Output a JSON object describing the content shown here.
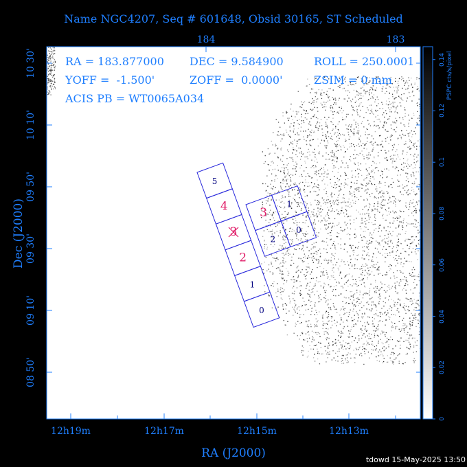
{
  "title": "Name NGC4207, Seq # 601648, Obsid 30165, ST Scheduled",
  "footer": "tdowd 15-May-2025 13:50",
  "info": {
    "ra": "RA = 183.877000",
    "dec": "DEC = 9.584900",
    "roll": "ROLL = 250.0001",
    "yoff": "YOFF =  -1.500'",
    "zoff": "ZOFF =  0.0000'",
    "zsim": "ZSIM = 0 mm",
    "acis": "ACIS PB = WT0065A034"
  },
  "colors": {
    "axis": "#1f7fff",
    "frame": "#1f7fff",
    "chips": "#2a2adc",
    "active_chip_label": "#e0206a",
    "chip_label": "#000080",
    "target": "#e0206a"
  },
  "chart_data": {
    "type": "scatter",
    "xlabel": "RA (J2000)",
    "ylabel": "Dec (J2000)",
    "x_ticks_bottom": [
      "12h19m",
      "12h17m",
      "12h15m",
      "12h13m"
    ],
    "x_ticks_top": [
      "184",
      "183"
    ],
    "y_ticks": [
      "08 50'",
      "09 10'",
      "09 30'",
      "09 50'",
      "10 10'",
      "10 30'"
    ],
    "colorbar": {
      "label": "PSPC cts/s/pixel",
      "ticks": [
        "0",
        "0.02",
        "0.04",
        "0.06",
        "0.08",
        "0.1",
        "0.12",
        "0.14"
      ],
      "range": [
        0,
        0.145
      ]
    },
    "chips": [
      {
        "id": "I0",
        "label": "0",
        "active": false
      },
      {
        "id": "I1",
        "label": "1",
        "active": false
      },
      {
        "id": "I2",
        "label": "2",
        "active": false
      },
      {
        "id": "I3",
        "label": "3",
        "active": true
      },
      {
        "id": "S0",
        "label": "0",
        "active": false
      },
      {
        "id": "S1",
        "label": "1",
        "active": false
      },
      {
        "id": "S2",
        "label": "2",
        "active": true
      },
      {
        "id": "S3",
        "label": "3",
        "active": true
      },
      {
        "id": "S4",
        "label": "4",
        "active": true
      },
      {
        "id": "S5",
        "label": "5",
        "active": false
      }
    ],
    "target": {
      "ra": 183.877,
      "dec": 9.5849
    }
  }
}
